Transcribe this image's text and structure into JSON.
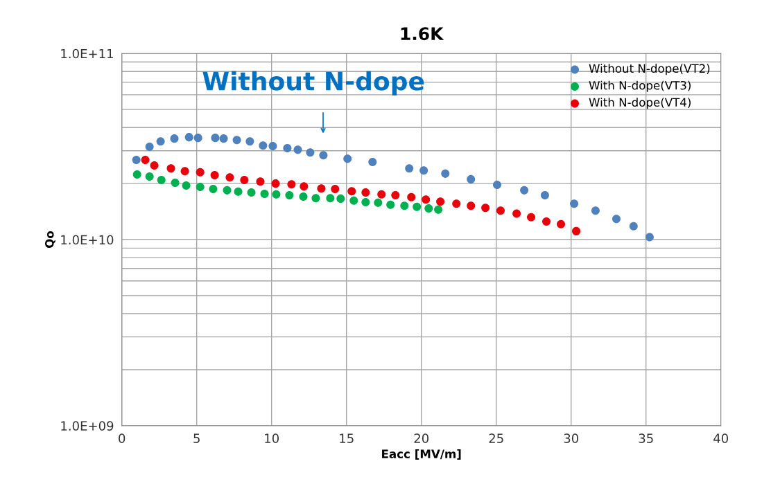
{
  "chart_data": {
    "type": "scatter",
    "title": "1.6K",
    "xlabel": "Eacc [MV/m]",
    "ylabel": "Qo",
    "log": "y",
    "grid": true,
    "legend": "top right",
    "marker": "circle",
    "xlim": [
      0,
      40
    ],
    "xticks": [
      0,
      5,
      10,
      15,
      20,
      25,
      30,
      35,
      40
    ],
    "ylim": [
      1000000000.0,
      100000000000.0
    ],
    "yticks": [
      {
        "value": 1000000000.0,
        "label": "1.0E+09"
      },
      {
        "value": 10000000000.0,
        "label": "1.0E+10"
      },
      {
        "value": 100000000000.0,
        "label": "1.0E+11"
      }
    ],
    "annotations": [
      "Without N-dope"
    ],
    "series": [
      {
        "name": "Without N-dope(VT2)",
        "color": "#4f81bd",
        "x": [
          0.97,
          1.85,
          2.59,
          3.51,
          4.49,
          5.09,
          6.24,
          6.8,
          7.68,
          8.55,
          9.43,
          10.08,
          11.05,
          11.75,
          12.58,
          13.46,
          15.07,
          16.74,
          19.19,
          20.16,
          21.6,
          23.31,
          25.06,
          26.87,
          28.25,
          30.2,
          31.63,
          33.02,
          34.17,
          35.24
        ],
        "values": [
          26800000000.0,
          31500000000.0,
          33700000000.0,
          34900000000.0,
          35500000000.0,
          35200000000.0,
          35200000000.0,
          34900000000.0,
          34300000000.0,
          33700000000.0,
          32000000000.0,
          31800000000.0,
          31000000000.0,
          30400000000.0,
          29400000000.0,
          28400000000.0,
          27200000000.0,
          26100000000.0,
          24100000000.0,
          23500000000.0,
          22600000000.0,
          21100000000.0,
          19700000000.0,
          18400000000.0,
          17300000000.0,
          15600000000.0,
          14300000000.0,
          12900000000.0,
          11800000000.0,
          10300000000.0
        ]
      },
      {
        "name": "With N-dope(VT3)",
        "color": "#00b050",
        "x": [
          1.02,
          1.85,
          2.64,
          3.56,
          4.3,
          5.23,
          6.1,
          7.03,
          7.77,
          8.65,
          9.53,
          10.31,
          11.19,
          12.12,
          12.95,
          13.92,
          14.61,
          15.49,
          16.28,
          17.11,
          17.94,
          18.87,
          19.7,
          20.49,
          21.13
        ],
        "values": [
          22400000000.0,
          21800000000.0,
          20900000000.0,
          20200000000.0,
          19500000000.0,
          19200000000.0,
          18700000000.0,
          18400000000.0,
          18100000000.0,
          17900000000.0,
          17600000000.0,
          17500000000.0,
          17300000000.0,
          17000000000.0,
          16700000000.0,
          16700000000.0,
          16600000000.0,
          16200000000.0,
          15900000000.0,
          15800000000.0,
          15400000000.0,
          15200000000.0,
          15000000000.0,
          14700000000.0,
          14500000000.0
        ]
      },
      {
        "name": "With N-dope(VT4)",
        "color": "#e8000b",
        "x": [
          1.57,
          2.17,
          3.28,
          4.21,
          5.23,
          6.2,
          7.21,
          8.18,
          9.25,
          10.27,
          11.33,
          12.16,
          13.32,
          14.24,
          15.35,
          16.28,
          17.34,
          18.27,
          19.33,
          20.3,
          21.27,
          22.34,
          23.31,
          24.28,
          25.29,
          26.36,
          27.33,
          28.35,
          29.32,
          30.34
        ],
        "values": [
          26800000000.0,
          25000000000.0,
          24100000000.0,
          23300000000.0,
          23000000000.0,
          22200000000.0,
          21600000000.0,
          20900000000.0,
          20500000000.0,
          20000000000.0,
          19800000000.0,
          19300000000.0,
          18800000000.0,
          18700000000.0,
          18200000000.0,
          17900000000.0,
          17500000000.0,
          17300000000.0,
          16900000000.0,
          16400000000.0,
          16000000000.0,
          15600000000.0,
          15200000000.0,
          14800000000.0,
          14300000000.0,
          13800000000.0,
          13200000000.0,
          12500000000.0,
          12100000000.0,
          11100000000.0
        ]
      }
    ]
  }
}
